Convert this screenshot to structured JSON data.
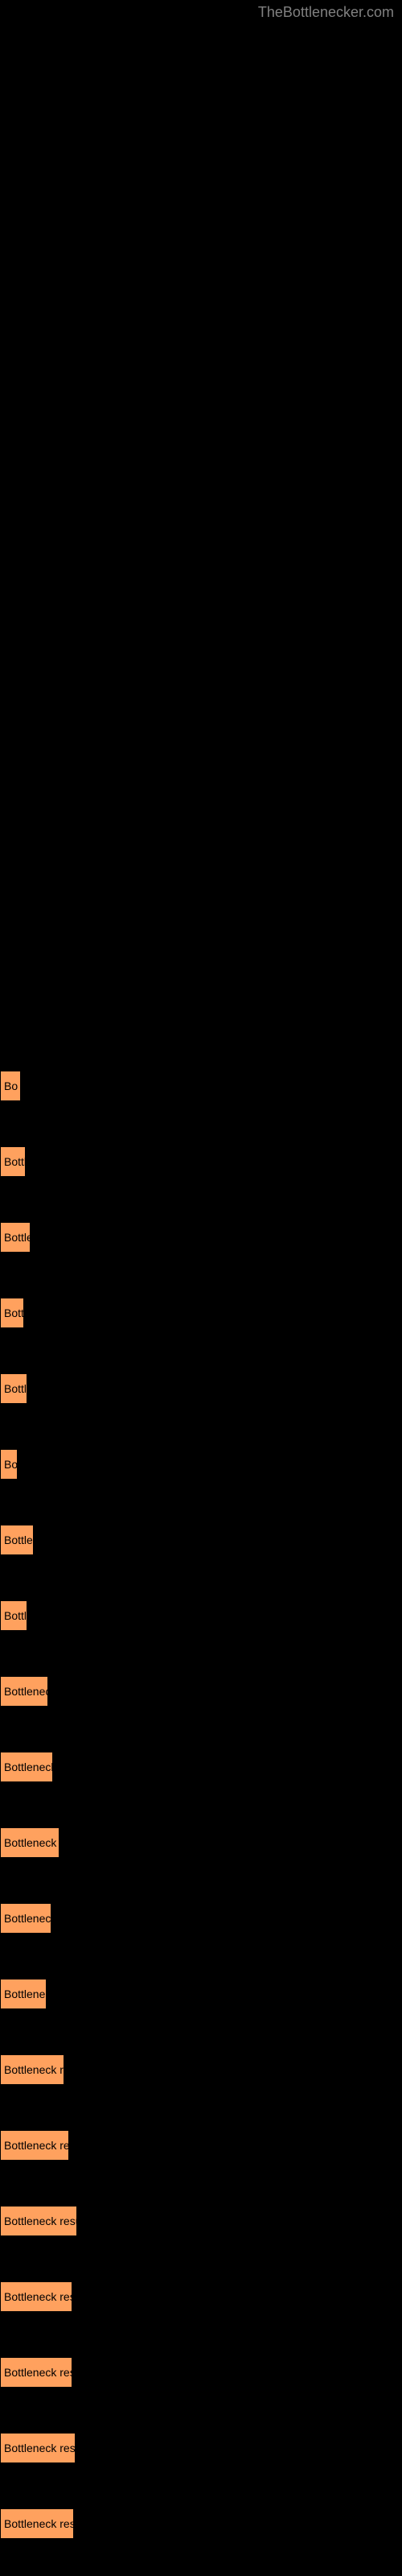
{
  "watermark": "TheBottlenecker.com",
  "chart": {
    "type": "bar",
    "background_color": "#000000",
    "bar_color": "#ffa15e",
    "bar_border_color": "#000000",
    "text_color": "#000000",
    "watermark_color": "#808080",
    "bar_label": "Bottleneck result",
    "bars": [
      {
        "width": 26,
        "label": "Bo"
      },
      {
        "width": 32,
        "label": "Bottl"
      },
      {
        "width": 38,
        "label": "Bottlen"
      },
      {
        "width": 30,
        "label": "Bottl"
      },
      {
        "width": 34,
        "label": "Bottle"
      },
      {
        "width": 22,
        "label": "Bo"
      },
      {
        "width": 42,
        "label": "Bottlene"
      },
      {
        "width": 34,
        "label": "Bottle"
      },
      {
        "width": 60,
        "label": "Bottleneck r"
      },
      {
        "width": 66,
        "label": "Bottleneck res"
      },
      {
        "width": 74,
        "label": "Bottleneck result"
      },
      {
        "width": 64,
        "label": "Bottleneck res"
      },
      {
        "width": 58,
        "label": "Bottleneck r"
      },
      {
        "width": 80,
        "label": "Bottleneck result"
      },
      {
        "width": 86,
        "label": "Bottleneck result"
      },
      {
        "width": 96,
        "label": "Bottleneck result"
      },
      {
        "width": 90,
        "label": "Bottleneck result"
      },
      {
        "width": 90,
        "label": "Bottleneck result"
      },
      {
        "width": 94,
        "label": "Bottleneck result"
      },
      {
        "width": 92,
        "label": "Bottleneck result"
      }
    ]
  }
}
